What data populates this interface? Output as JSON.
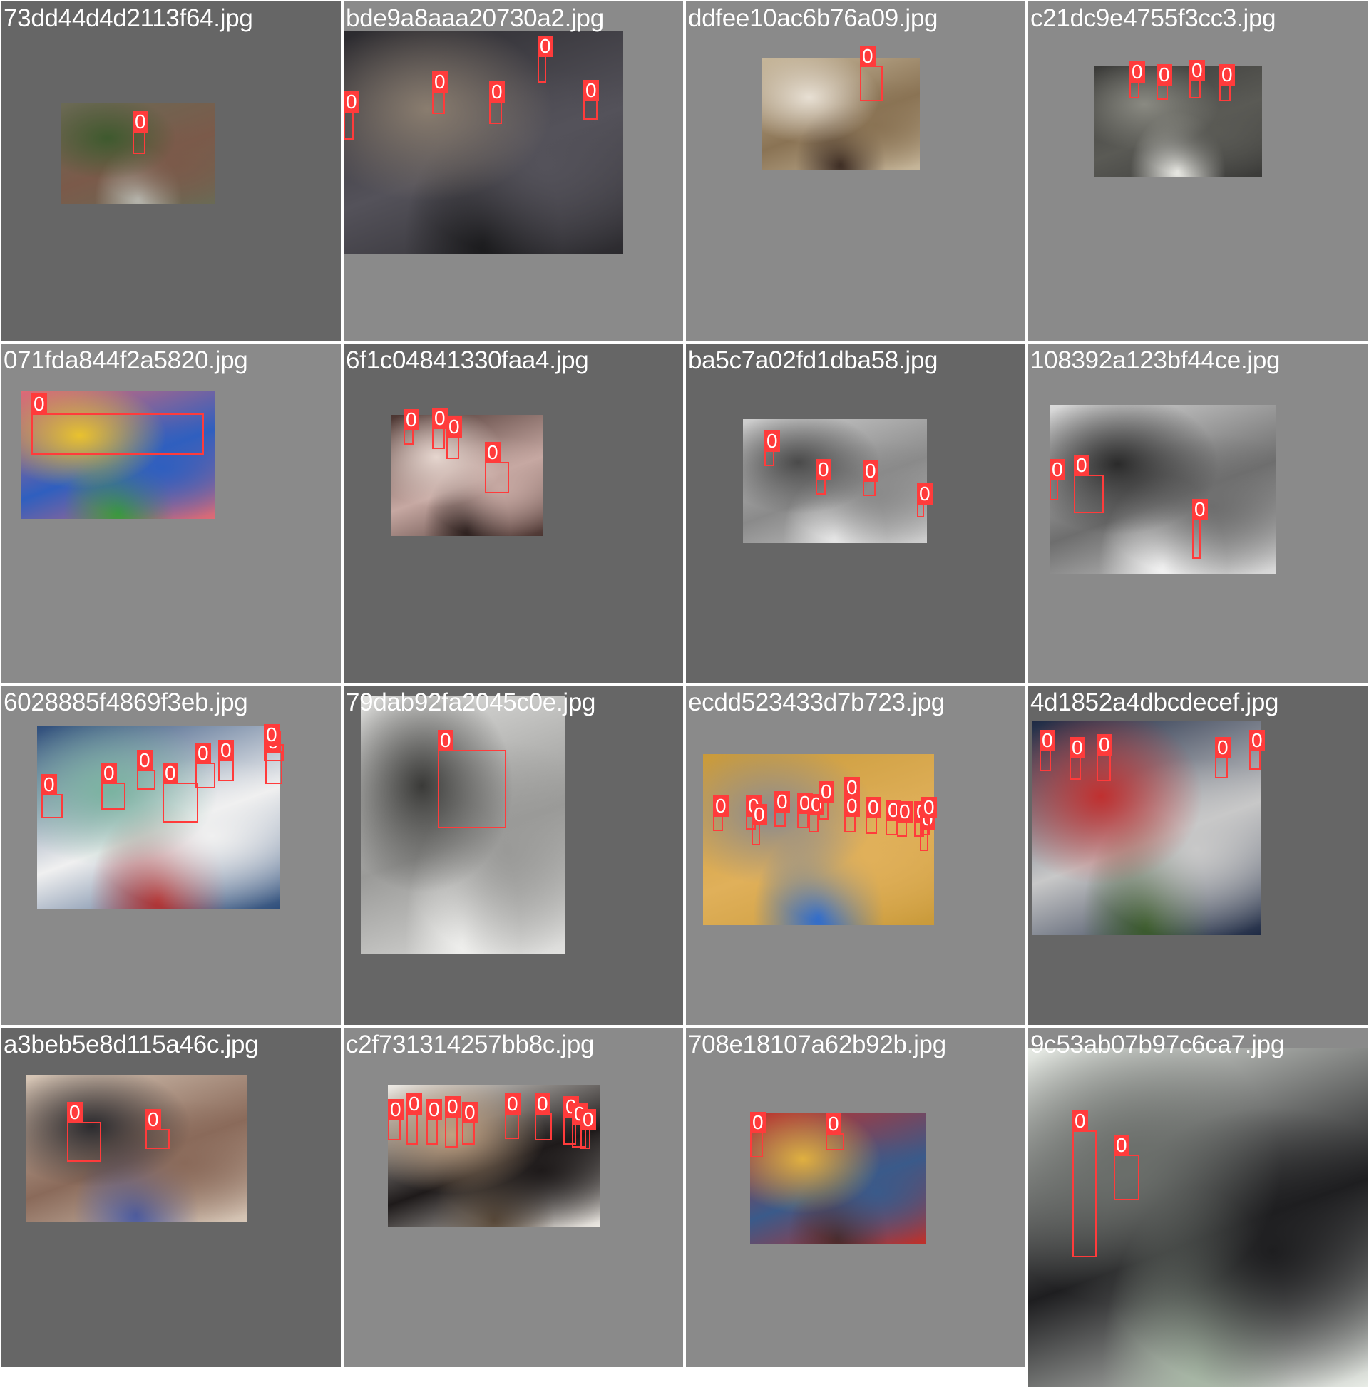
{
  "colors": {
    "tile_light": "#8a8a8a",
    "tile_dark": "#666666",
    "box": "#ff3b3b",
    "text": "#ffffff"
  },
  "tiles": [
    {
      "filename": "73dd44d4d2113f64.jpg",
      "tone": "dark",
      "photo": {
        "colors": [
          "#6a6a55",
          "#7b5a4a",
          "#3e5a2e",
          "#b8b8b0"
        ]
      },
      "boxes": [
        {
          "label": "0"
        }
      ]
    },
    {
      "filename": "bde9a8aaa20730a2.jpg",
      "tone": "light",
      "photo": {
        "colors": [
          "#2b2a2e",
          "#54525a",
          "#8a7d6f",
          "#1a1a1c"
        ]
      },
      "boxes": [
        {
          "label": "0"
        },
        {
          "label": "0"
        },
        {
          "label": "0"
        },
        {
          "label": "0"
        },
        {
          "label": "0"
        }
      ]
    },
    {
      "filename": "ddfee10ac6b76a09.jpg",
      "tone": "light",
      "photo": {
        "colors": [
          "#c7b79b",
          "#8a7354",
          "#e8e0d4",
          "#3a2a22"
        ]
      },
      "boxes": [
        {
          "label": "0"
        }
      ]
    },
    {
      "filename": "c21dc9e4755f3cc3.jpg",
      "tone": "light",
      "photo": {
        "colors": [
          "#3a3a38",
          "#5a5a55",
          "#8a8a82",
          "#efefea"
        ]
      },
      "boxes": [
        {
          "label": "0"
        },
        {
          "label": "0"
        },
        {
          "label": "0"
        },
        {
          "label": "0"
        }
      ]
    },
    {
      "filename": "071fda844f2a5820.jpg",
      "tone": "light",
      "photo": {
        "colors": [
          "#e06b74",
          "#2f5fbf",
          "#e9c22e",
          "#3a9a3a"
        ]
      },
      "boxes": [
        {
          "label": "0"
        }
      ]
    },
    {
      "filename": "6f1c04841330faa4.jpg",
      "tone": "dark",
      "photo": {
        "colors": [
          "#4a3430",
          "#c6a8a2",
          "#e6d6cf",
          "#2a1e1c"
        ]
      },
      "boxes": [
        {
          "label": "0"
        },
        {
          "label": "0"
        },
        {
          "label": "0"
        },
        {
          "label": "0"
        }
      ]
    },
    {
      "filename": "ba5c7a02fd1dba58.jpg",
      "tone": "dark",
      "photo": {
        "colors": [
          "#cfcfcf",
          "#8a8a8a",
          "#4a4a4a",
          "#e8e8e8"
        ]
      },
      "boxes": [
        {
          "label": "0"
        },
        {
          "label": "0"
        },
        {
          "label": "0"
        },
        {
          "label": "0"
        }
      ]
    },
    {
      "filename": "108392a123bf44ce.jpg",
      "tone": "light",
      "photo": {
        "colors": [
          "#dcdcdc",
          "#6e6e6e",
          "#2a2a2a",
          "#f5f5f5"
        ]
      },
      "boxes": [
        {
          "label": "0"
        },
        {
          "label": "0"
        },
        {
          "label": "0"
        }
      ]
    },
    {
      "filename": "6028885f4869f3eb.jpg",
      "tone": "light",
      "photo": {
        "colors": [
          "#2d4d7a",
          "#f0f0f0",
          "#7ab3a0",
          "#b03030"
        ]
      },
      "boxes": [
        {
          "label": "0"
        },
        {
          "label": "0"
        },
        {
          "label": "0"
        },
        {
          "label": "0"
        },
        {
          "label": "0"
        },
        {
          "label": "0"
        },
        {
          "label": "0"
        },
        {
          "label": "0"
        }
      ]
    },
    {
      "filename": "79dab92fa2045c0e.jpg",
      "tone": "dark",
      "photo": {
        "colors": [
          "#e2e2e0",
          "#9a9a98",
          "#3a3a38",
          "#f0f0ee"
        ]
      },
      "boxes": [
        {
          "label": "0"
        }
      ]
    },
    {
      "filename": "ecdd523433d7b723.jpg",
      "tone": "light",
      "photo": {
        "colors": [
          "#c99a3a",
          "#e0b05a",
          "#8a8a90",
          "#2a6ad0"
        ]
      },
      "boxes": [
        {
          "label": "0"
        },
        {
          "label": "0"
        },
        {
          "label": "0"
        },
        {
          "label": "0"
        },
        {
          "label": "0"
        },
        {
          "label": "0"
        },
        {
          "label": "0"
        },
        {
          "label": "0"
        },
        {
          "label": "0"
        },
        {
          "label": "0"
        },
        {
          "label": "0"
        },
        {
          "label": "0"
        },
        {
          "label": "0"
        },
        {
          "label": "0"
        },
        {
          "label": "0"
        }
      ]
    },
    {
      "filename": "4d1852a4dbcdecef.jpg",
      "tone": "dark",
      "photo": {
        "colors": [
          "#1e2a44",
          "#c8c8c8",
          "#c03030",
          "#3a5a2a"
        ]
      },
      "boxes": [
        {
          "label": "0"
        },
        {
          "label": "0"
        },
        {
          "label": "0"
        },
        {
          "label": "0"
        },
        {
          "label": "0"
        }
      ]
    },
    {
      "filename": "a3beb5e8d115a46c.jpg",
      "tone": "dark",
      "photo": {
        "colors": [
          "#d8c8b8",
          "#8a6a5a",
          "#2a2a2e",
          "#4a5aa0"
        ]
      },
      "boxes": [
        {
          "label": "0"
        },
        {
          "label": "0"
        }
      ]
    },
    {
      "filename": "c2f731314257bb8c.jpg",
      "tone": "light",
      "photo": {
        "colors": [
          "#f0ece6",
          "#1e1a1a",
          "#c0a080",
          "#5a4a3a"
        ]
      },
      "boxes": [
        {
          "label": "0"
        },
        {
          "label": "0"
        },
        {
          "label": "0"
        },
        {
          "label": "0"
        },
        {
          "label": "0"
        },
        {
          "label": "0"
        },
        {
          "label": "0"
        },
        {
          "label": "0"
        },
        {
          "label": "0"
        },
        {
          "label": "0"
        },
        {
          "label": "0"
        }
      ]
    },
    {
      "filename": "708e18107a62b92b.jpg",
      "tone": "light",
      "photo": {
        "colors": [
          "#c0302a",
          "#3a5a8a",
          "#e0b040",
          "#4a2a2a"
        ]
      },
      "boxes": [
        {
          "label": "0"
        },
        {
          "label": "0"
        }
      ]
    },
    {
      "filename": "9c53ab07b97c6ca7.jpg",
      "tone": "light",
      "photo": {
        "colors": [
          "#e8ece6",
          "#1e1e20",
          "#6a6e6a",
          "#a7b7a5"
        ]
      },
      "boxes": [
        {
          "label": "0"
        },
        {
          "label": "0"
        }
      ]
    }
  ]
}
